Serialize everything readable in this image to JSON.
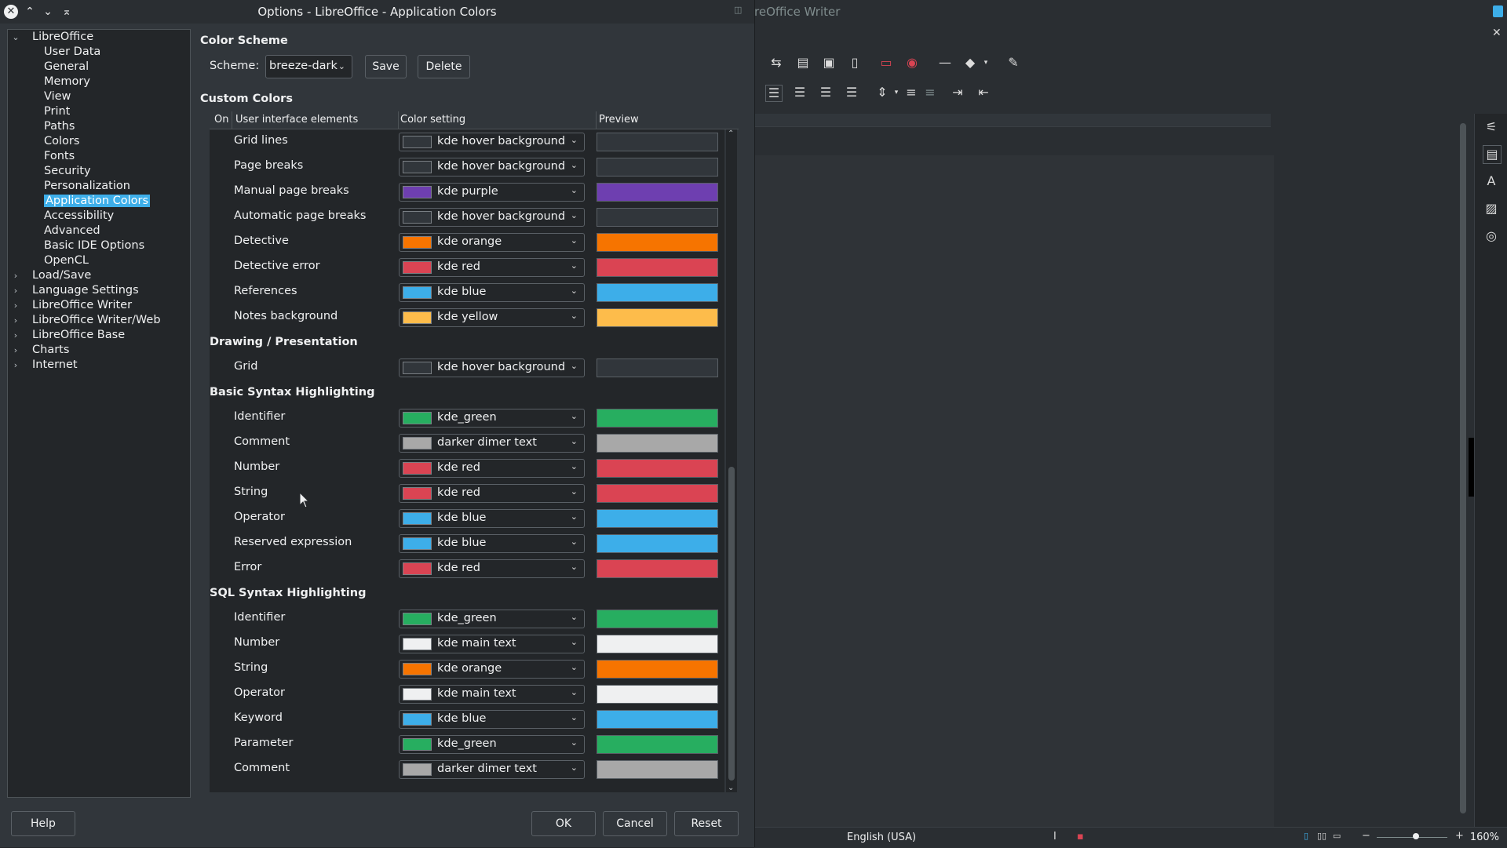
{
  "dialog": {
    "title": "Options - LibreOffice - Application Colors"
  },
  "writer": {
    "title": "reOffice Writer",
    "language": "English (USA)",
    "zoom": "160%"
  },
  "tree": {
    "items": [
      {
        "label": "LibreOffice",
        "level": 0,
        "expander": "open"
      },
      {
        "label": "User Data",
        "level": 1
      },
      {
        "label": "General",
        "level": 1
      },
      {
        "label": "Memory",
        "level": 1
      },
      {
        "label": "View",
        "level": 1
      },
      {
        "label": "Print",
        "level": 1
      },
      {
        "label": "Paths",
        "level": 1
      },
      {
        "label": "Colors",
        "level": 1
      },
      {
        "label": "Fonts",
        "level": 1
      },
      {
        "label": "Security",
        "level": 1
      },
      {
        "label": "Personalization",
        "level": 1
      },
      {
        "label": "Application Colors",
        "level": 1,
        "selected": true
      },
      {
        "label": "Accessibility",
        "level": 1
      },
      {
        "label": "Advanced",
        "level": 1
      },
      {
        "label": "Basic IDE Options",
        "level": 1
      },
      {
        "label": "OpenCL",
        "level": 1
      },
      {
        "label": "Load/Save",
        "level": 0,
        "expander": "closed"
      },
      {
        "label": "Language Settings",
        "level": 0,
        "expander": "closed"
      },
      {
        "label": "LibreOffice Writer",
        "level": 0,
        "expander": "closed"
      },
      {
        "label": "LibreOffice Writer/Web",
        "level": 0,
        "expander": "closed"
      },
      {
        "label": "LibreOffice Base",
        "level": 0,
        "expander": "closed"
      },
      {
        "label": "Charts",
        "level": 0,
        "expander": "closed"
      },
      {
        "label": "Internet",
        "level": 0,
        "expander": "closed"
      }
    ]
  },
  "scheme": {
    "header": "Color Scheme",
    "label": "Scheme:",
    "value": "breeze-dark",
    "save": "Save",
    "delete": "Delete"
  },
  "custom": {
    "header": "Custom Colors",
    "col_on": "On",
    "col_elements": "User interface elements",
    "col_setting": "Color setting",
    "col_preview": "Preview"
  },
  "rows": [
    {
      "type": "row",
      "label": "Grid lines",
      "setting": "kde hover background",
      "color": "#31363b"
    },
    {
      "type": "row",
      "label": "Page breaks",
      "setting": "kde hover background",
      "color": "#31363b"
    },
    {
      "type": "row",
      "label": "Manual page breaks",
      "setting": "kde purple",
      "color": "#6e3fb0"
    },
    {
      "type": "row",
      "label": "Automatic page breaks",
      "setting": "kde hover background",
      "color": "#31363b"
    },
    {
      "type": "row",
      "label": "Detective",
      "setting": "kde orange",
      "color": "#f67400"
    },
    {
      "type": "row",
      "label": "Detective error",
      "setting": "kde red",
      "color": "#da4453"
    },
    {
      "type": "row",
      "label": "References",
      "setting": "kde blue",
      "color": "#3daee9"
    },
    {
      "type": "row",
      "label": "Notes background",
      "setting": "kde yellow",
      "color": "#fdbc4b"
    },
    {
      "type": "section",
      "label": "Drawing / Presentation"
    },
    {
      "type": "row",
      "label": "Grid",
      "setting": "kde hover background",
      "color": "#31363b"
    },
    {
      "type": "section",
      "label": "Basic Syntax Highlighting"
    },
    {
      "type": "row",
      "label": "Identifier",
      "setting": "kde_green",
      "color": "#27ae60"
    },
    {
      "type": "row",
      "label": "Comment",
      "setting": "darker dimer text",
      "color": "#a8a8a8"
    },
    {
      "type": "row",
      "label": "Number",
      "setting": "kde red",
      "color": "#da4453"
    },
    {
      "type": "row",
      "label": "String",
      "setting": "kde red",
      "color": "#da4453"
    },
    {
      "type": "row",
      "label": "Operator",
      "setting": "kde blue",
      "color": "#3daee9"
    },
    {
      "type": "row",
      "label": "Reserved expression",
      "setting": "kde blue",
      "color": "#3daee9"
    },
    {
      "type": "row",
      "label": "Error",
      "setting": "kde red",
      "color": "#da4453"
    },
    {
      "type": "section",
      "label": "SQL Syntax Highlighting"
    },
    {
      "type": "row",
      "label": "Identifier",
      "setting": "kde_green",
      "color": "#27ae60"
    },
    {
      "type": "row",
      "label": "Number",
      "setting": "kde main text",
      "color": "#eff0f1"
    },
    {
      "type": "row",
      "label": "String",
      "setting": "kde orange",
      "color": "#f67400"
    },
    {
      "type": "row",
      "label": "Operator",
      "setting": "kde main text",
      "color": "#eff0f1"
    },
    {
      "type": "row",
      "label": "Keyword",
      "setting": "kde blue",
      "color": "#3daee9"
    },
    {
      "type": "row",
      "label": "Parameter",
      "setting": "kde_green",
      "color": "#27ae60"
    },
    {
      "type": "row",
      "label": "Comment",
      "setting": "darker dimer text",
      "color": "#a8a8a8"
    }
  ],
  "footer": {
    "help": "Help",
    "ok": "OK",
    "cancel": "Cancel",
    "reset": "Reset"
  }
}
